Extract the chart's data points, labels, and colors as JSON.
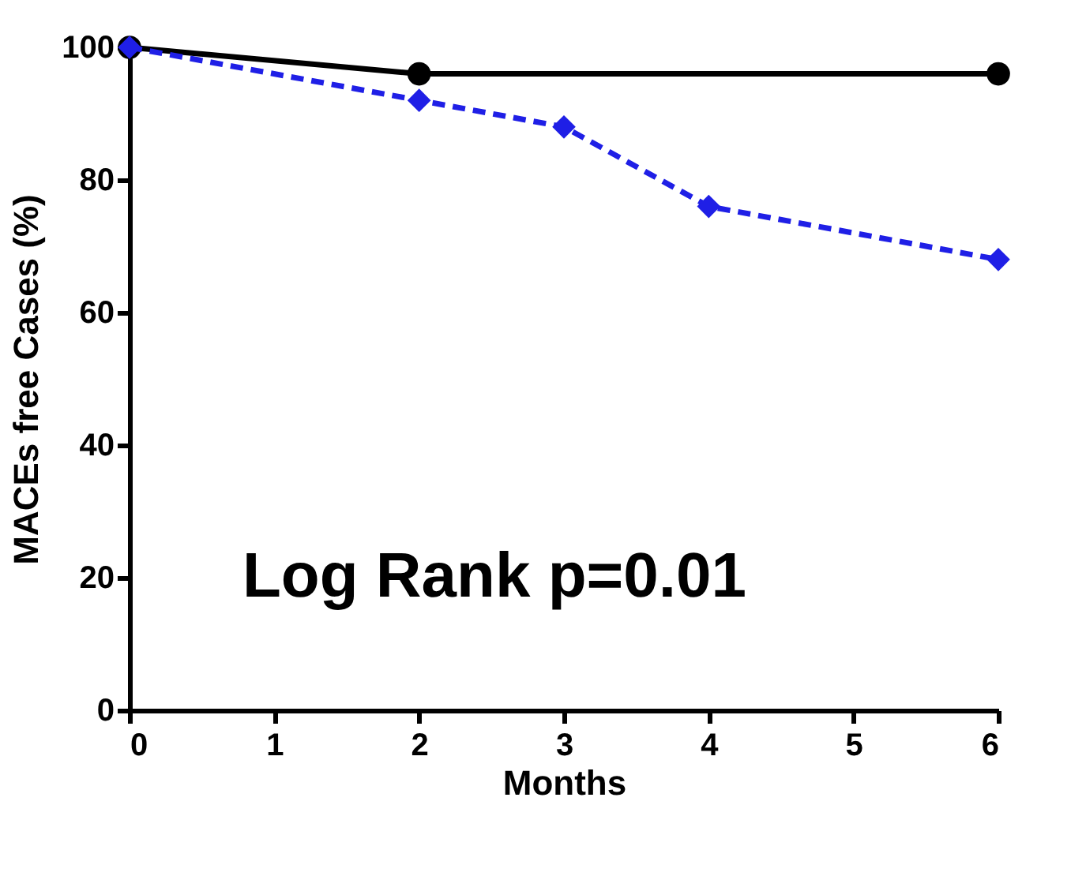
{
  "chart_data": {
    "type": "line",
    "xlabel": "Months",
    "ylabel": "MACEs free Cases (%)",
    "annotations": [
      "Log Rank p=0.01"
    ],
    "xlim": [
      0,
      6
    ],
    "xticks": [
      0,
      1,
      2,
      3,
      4,
      5,
      6
    ],
    "ylim": [
      0,
      100
    ],
    "yticks": [
      0,
      20,
      40,
      60,
      80,
      100
    ],
    "grid": false,
    "series": [
      {
        "color": "#000000",
        "x": [
          0,
          2,
          6
        ],
        "values": [
          100,
          96,
          96
        ],
        "marker": "circle",
        "line_style": "solid"
      },
      {
        "color": "#1f1fe6",
        "x": [
          0,
          2,
          3,
          4,
          6
        ],
        "values": [
          100,
          92,
          88,
          76,
          68
        ],
        "marker": "diamond",
        "line_style": "dashed"
      }
    ]
  }
}
